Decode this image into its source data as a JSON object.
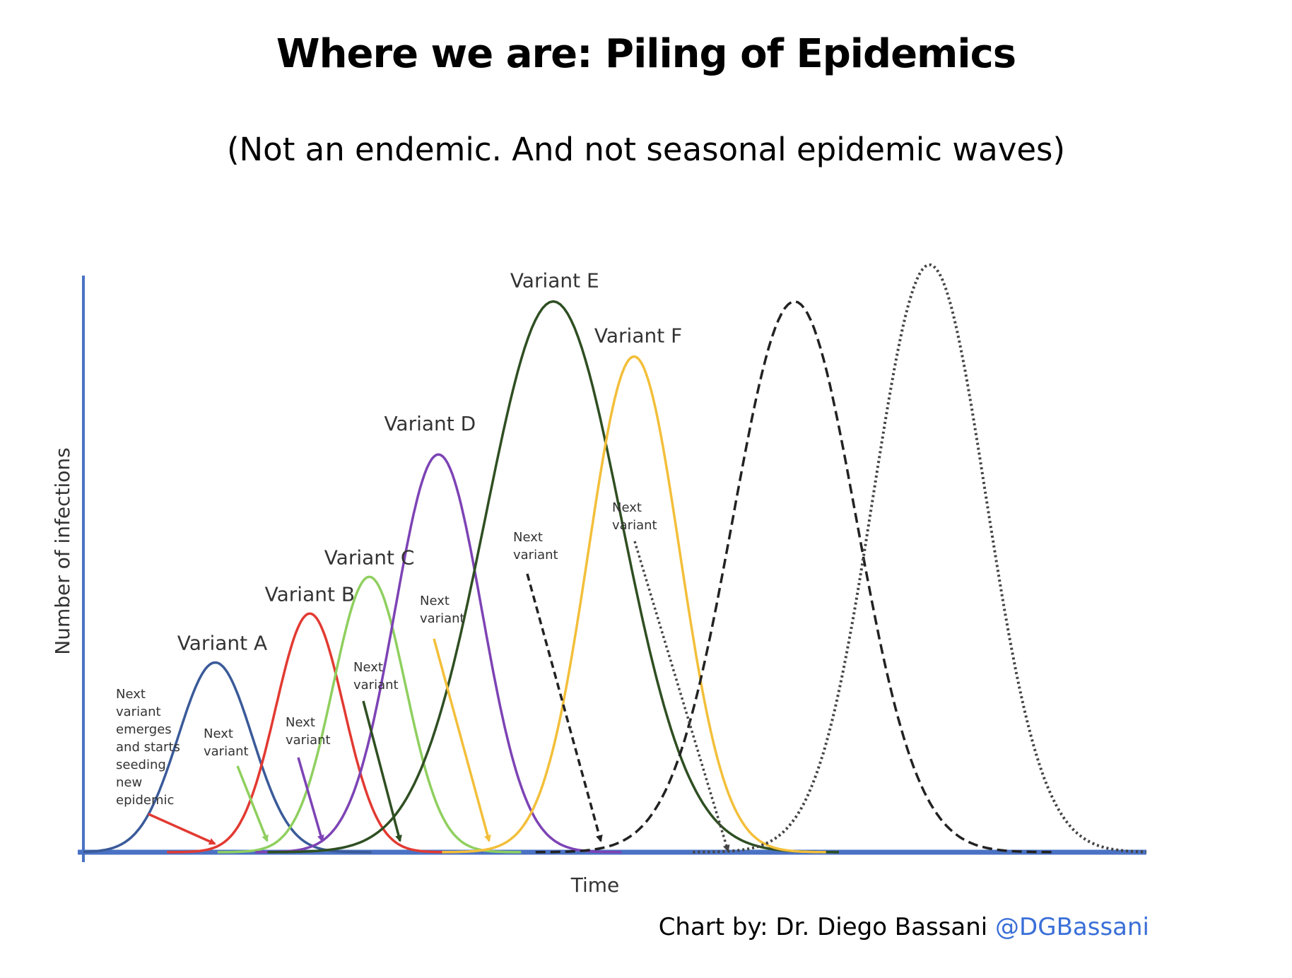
{
  "title": "Where we are: Piling of Epidemics",
  "subtitle": "(Not an endemic. And not seasonal epidemic waves)",
  "credit": {
    "text": "Chart by: Dr. Diego Bassani",
    "handle": "@DGBassani"
  },
  "chart_data": {
    "type": "line",
    "xlabel": "Time",
    "ylabel": "Number of infections",
    "grid": false,
    "legend": "none",
    "series": [
      {
        "name": "Variant A",
        "peak_time": 0.124,
        "height": 0.31,
        "width": 0.035,
        "color": "#3a5a99",
        "style": "solid"
      },
      {
        "name": "Variant B",
        "peak_time": 0.213,
        "height": 0.39,
        "width": 0.032,
        "color": "#e23a32",
        "style": "solid"
      },
      {
        "name": "Variant C",
        "peak_time": 0.269,
        "height": 0.45,
        "width": 0.034,
        "color": "#8fcf5f",
        "style": "solid"
      },
      {
        "name": "Variant D",
        "peak_time": 0.334,
        "height": 0.65,
        "width": 0.041,
        "color": "#7d43b5",
        "style": "solid"
      },
      {
        "name": "Variant E",
        "peak_time": 0.442,
        "height": 0.9,
        "width": 0.064,
        "color": "#2f4f22",
        "style": "solid"
      },
      {
        "name": "Variant F",
        "peak_time": 0.518,
        "height": 0.81,
        "width": 0.043,
        "color": "#f3bf3a",
        "style": "solid"
      },
      {
        "name": "",
        "peak_time": 0.669,
        "height": 0.9,
        "width": 0.058,
        "color": "#222222",
        "style": "dashed"
      },
      {
        "name": "",
        "peak_time": 0.796,
        "height": 0.96,
        "width": 0.053,
        "color": "#444444",
        "style": "dotted"
      }
    ],
    "annotations": [
      {
        "text": [
          "Next",
          "variant",
          "emerges",
          "and starts",
          "seeding",
          "new",
          "epidemic"
        ],
        "arrow_color": "#e23a32"
      },
      {
        "text": [
          "Next",
          "variant"
        ],
        "arrow_color": "#8fcf5f"
      },
      {
        "text": [
          "Next",
          "variant"
        ],
        "arrow_color": "#7d43b5"
      },
      {
        "text": [
          "Next",
          "variant"
        ],
        "arrow_color": "#2f4f22"
      },
      {
        "text": [
          "Next",
          "variant"
        ],
        "arrow_color": "#f3bf3a"
      },
      {
        "text": [
          "Next",
          "variant"
        ],
        "arrow_color": "#222222"
      },
      {
        "text": [
          "Next",
          "variant"
        ],
        "arrow_color": "#444444"
      }
    ],
    "axis_color": "#4a72c4"
  }
}
